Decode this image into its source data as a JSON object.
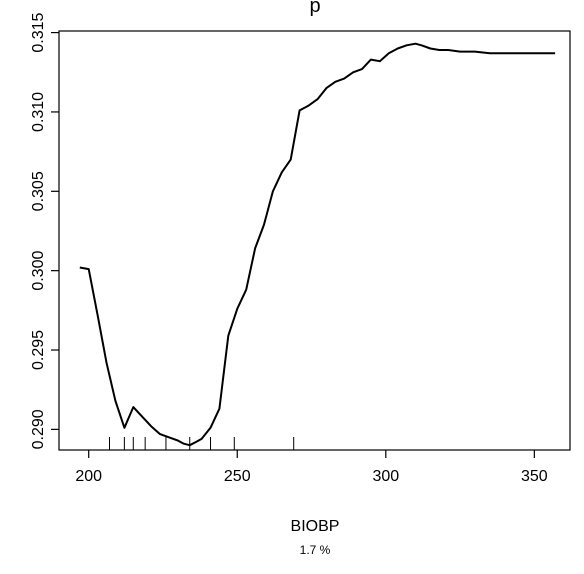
{
  "chart_data": {
    "type": "line",
    "title": "p",
    "xlabel": "BIOBP",
    "sublabel": "1.7 %",
    "ylabel": "",
    "xlim": [
      190,
      362
    ],
    "ylim": [
      0.2887,
      0.3151
    ],
    "x_ticks": [
      "200",
      "250",
      "300",
      "350"
    ],
    "y_ticks": [
      "0.290",
      "0.295",
      "0.300",
      "0.305",
      "0.310",
      "0.315"
    ],
    "grid": false,
    "legend": "none",
    "line_color": "#000000",
    "series": [
      {
        "x": [
          197,
          200,
          203,
          206,
          209,
          212,
          215,
          218,
          221,
          224,
          227,
          230,
          232,
          234,
          236,
          238,
          241,
          244,
          247,
          250,
          253,
          256,
          259,
          262,
          265,
          268,
          271,
          274,
          277,
          280,
          283,
          286,
          289,
          292,
          295,
          298,
          301,
          304,
          307,
          310,
          312,
          315,
          318,
          321,
          325,
          330,
          335,
          340,
          345,
          350,
          357
        ],
        "y": [
          0.3002,
          0.3001,
          0.2972,
          0.2942,
          0.2918,
          0.2901,
          0.2914,
          0.2908,
          0.2902,
          0.2897,
          0.2895,
          0.2893,
          0.2891,
          0.289,
          0.2892,
          0.2894,
          0.2901,
          0.2913,
          0.2959,
          0.2976,
          0.2988,
          0.3014,
          0.3029,
          0.305,
          0.3062,
          0.307,
          0.3101,
          0.3104,
          0.3108,
          0.3115,
          0.3119,
          0.3121,
          0.3125,
          0.3127,
          0.3133,
          0.3132,
          0.3137,
          0.314,
          0.3142,
          0.3143,
          0.3142,
          0.314,
          0.3139,
          0.3139,
          0.3138,
          0.3138,
          0.3137,
          0.3137,
          0.3137,
          0.3137,
          0.3137
        ]
      }
    ],
    "rug": [
      207,
      212,
      215,
      219,
      226,
      234,
      241,
      249,
      269
    ]
  }
}
